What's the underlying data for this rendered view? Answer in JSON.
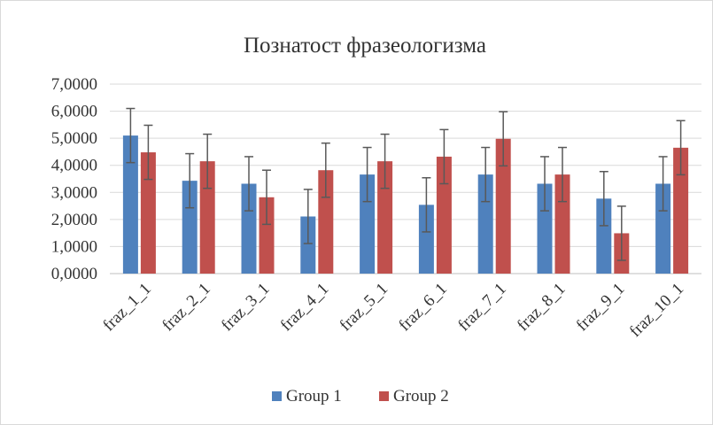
{
  "chart_data": {
    "type": "bar",
    "title": "Познатост фразеологизма",
    "categories": [
      "fraz_1_1",
      "fraz_2_1",
      "fraz_3_1",
      "fraz_4_1",
      "fraz_5_1",
      "fraz_6_1",
      "fraz_7_1",
      "fraz_8_1",
      "fraz_9_1",
      "fraz_10_1"
    ],
    "y_tick_labels": [
      "0,0000",
      "1,0000",
      "2,0000",
      "3,0000",
      "4,0000",
      "5,0000",
      "6,0000",
      "7,0000"
    ],
    "ylim": [
      0,
      7
    ],
    "grid": true,
    "legend_position": "bottom",
    "error_bars": true,
    "series": [
      {
        "name": "Group 1",
        "color": "#4f81bd",
        "values": [
          5.1,
          3.43,
          3.32,
          2.11,
          3.66,
          2.54,
          3.66,
          3.32,
          2.77,
          3.32
        ],
        "error": [
          1.0,
          1.0,
          1.0,
          1.0,
          1.0,
          1.0,
          1.0,
          1.0,
          1.0,
          1.0
        ]
      },
      {
        "name": "Group 2",
        "color": "#c0504d",
        "values": [
          4.48,
          4.15,
          2.82,
          3.82,
          4.15,
          4.32,
          4.98,
          3.66,
          1.49,
          4.65
        ],
        "error": [
          1.0,
          1.0,
          1.0,
          1.0,
          1.0,
          1.0,
          1.0,
          1.0,
          1.0,
          1.0
        ]
      }
    ]
  }
}
